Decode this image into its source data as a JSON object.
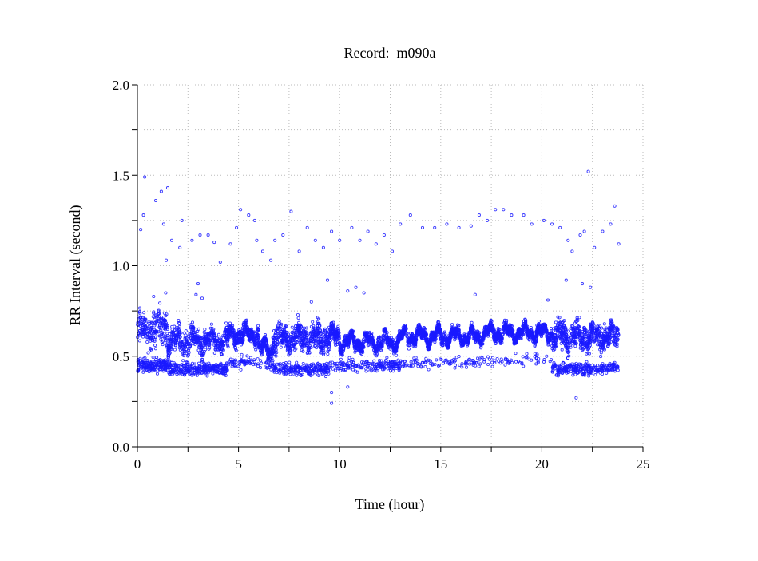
{
  "chart_data": {
    "type": "scatter",
    "title": "Record:  m090a",
    "xlabel": "Time (hour)",
    "ylabel": "RR Interval (second)",
    "xlim": [
      0,
      25
    ],
    "ylim": [
      0,
      2.0
    ],
    "xticks": [
      "0",
      "5",
      "10",
      "15",
      "20",
      "25"
    ],
    "xtick_values": [
      0,
      5,
      10,
      15,
      20,
      25
    ],
    "yticks": [
      "0.0",
      "0.5",
      "1.0",
      "1.5",
      "2.0"
    ],
    "ytick_values": [
      0,
      0.5,
      1.0,
      1.5,
      2.0
    ],
    "grid": true,
    "grid_step": {
      "x": 2.5,
      "y": 0.25
    },
    "marker_color": "#1a1aff",
    "band_segments_note_fields": [
      "x_start_hour",
      "x_end_hour",
      "main_center_s",
      "main_halfwidth_s",
      "lower_center_s",
      "lower_fraction"
    ],
    "band_segments": [
      [
        0.0,
        1.5,
        0.65,
        0.1,
        0.45,
        0.4
      ],
      [
        1.5,
        2.5,
        0.58,
        0.08,
        0.43,
        0.3
      ],
      [
        2.5,
        4.5,
        0.59,
        0.07,
        0.43,
        0.35
      ],
      [
        4.5,
        6.0,
        0.62,
        0.05,
        0.47,
        0.15
      ],
      [
        6.0,
        6.7,
        0.54,
        0.04,
        0.46,
        0.1
      ],
      [
        6.7,
        9.5,
        0.6,
        0.08,
        0.43,
        0.3
      ],
      [
        9.5,
        10.0,
        0.61,
        0.05,
        0.45,
        0.1
      ],
      [
        10.0,
        13.0,
        0.58,
        0.04,
        0.45,
        0.2
      ],
      [
        13.0,
        17.0,
        0.61,
        0.035,
        0.46,
        0.08
      ],
      [
        17.0,
        20.5,
        0.63,
        0.035,
        0.48,
        0.06
      ],
      [
        20.5,
        23.8,
        0.61,
        0.08,
        0.43,
        0.3
      ]
    ],
    "outliers": [
      [
        0.36,
        1.49
      ],
      [
        0.16,
        1.2
      ],
      [
        0.3,
        1.28
      ],
      [
        0.91,
        1.36
      ],
      [
        1.18,
        1.41
      ],
      [
        1.5,
        1.43
      ],
      [
        1.3,
        1.23
      ],
      [
        1.42,
        1.03
      ],
      [
        1.7,
        1.14
      ],
      [
        2.1,
        1.1
      ],
      [
        2.2,
        1.25
      ],
      [
        2.7,
        1.14
      ],
      [
        3.1,
        1.17
      ],
      [
        3.5,
        1.17
      ],
      [
        3.8,
        1.13
      ],
      [
        4.1,
        1.02
      ],
      [
        4.6,
        1.12
      ],
      [
        4.9,
        1.21
      ],
      [
        5.1,
        1.31
      ],
      [
        5.5,
        1.28
      ],
      [
        5.8,
        1.25
      ],
      [
        5.9,
        1.14
      ],
      [
        6.2,
        1.08
      ],
      [
        6.6,
        1.03
      ],
      [
        6.8,
        1.14
      ],
      [
        7.2,
        1.17
      ],
      [
        7.6,
        1.3
      ],
      [
        8.0,
        1.08
      ],
      [
        8.4,
        1.21
      ],
      [
        8.8,
        1.14
      ],
      [
        9.2,
        1.1
      ],
      [
        9.4,
        0.92
      ],
      [
        9.6,
        1.19
      ],
      [
        10.0,
        1.14
      ],
      [
        10.4,
        0.86
      ],
      [
        10.6,
        1.21
      ],
      [
        11.0,
        1.14
      ],
      [
        11.4,
        1.19
      ],
      [
        11.8,
        1.12
      ],
      [
        12.2,
        1.17
      ],
      [
        12.6,
        1.08
      ],
      [
        13.0,
        1.23
      ],
      [
        13.5,
        1.28
      ],
      [
        14.1,
        1.21
      ],
      [
        14.7,
        1.21
      ],
      [
        15.3,
        1.23
      ],
      [
        15.9,
        1.21
      ],
      [
        16.5,
        1.22
      ],
      [
        16.9,
        1.28
      ],
      [
        17.3,
        1.25
      ],
      [
        17.7,
        1.31
      ],
      [
        18.1,
        1.31
      ],
      [
        18.5,
        1.28
      ],
      [
        19.1,
        1.28
      ],
      [
        19.5,
        1.23
      ],
      [
        20.1,
        1.25
      ],
      [
        20.5,
        1.23
      ],
      [
        20.9,
        1.21
      ],
      [
        21.3,
        1.14
      ],
      [
        21.5,
        1.08
      ],
      [
        21.9,
        1.17
      ],
      [
        22.1,
        1.19
      ],
      [
        22.3,
        1.52
      ],
      [
        22.6,
        1.1
      ],
      [
        23.0,
        1.19
      ],
      [
        23.4,
        1.23
      ],
      [
        23.6,
        1.33
      ],
      [
        23.8,
        1.12
      ],
      [
        9.6,
        0.24
      ],
      [
        9.6,
        0.3
      ],
      [
        21.7,
        0.27
      ],
      [
        10.4,
        0.33
      ],
      [
        2.9,
        0.84
      ],
      [
        3.2,
        0.82
      ],
      [
        3.0,
        0.9
      ],
      [
        10.8,
        0.88
      ],
      [
        11.2,
        0.85
      ],
      [
        21.2,
        0.92
      ],
      [
        22.0,
        0.9
      ],
      [
        22.4,
        0.88
      ],
      [
        16.7,
        0.84
      ],
      [
        0.8,
        0.83
      ],
      [
        1.4,
        0.85
      ],
      [
        8.6,
        0.8
      ],
      [
        20.3,
        0.81
      ]
    ]
  }
}
